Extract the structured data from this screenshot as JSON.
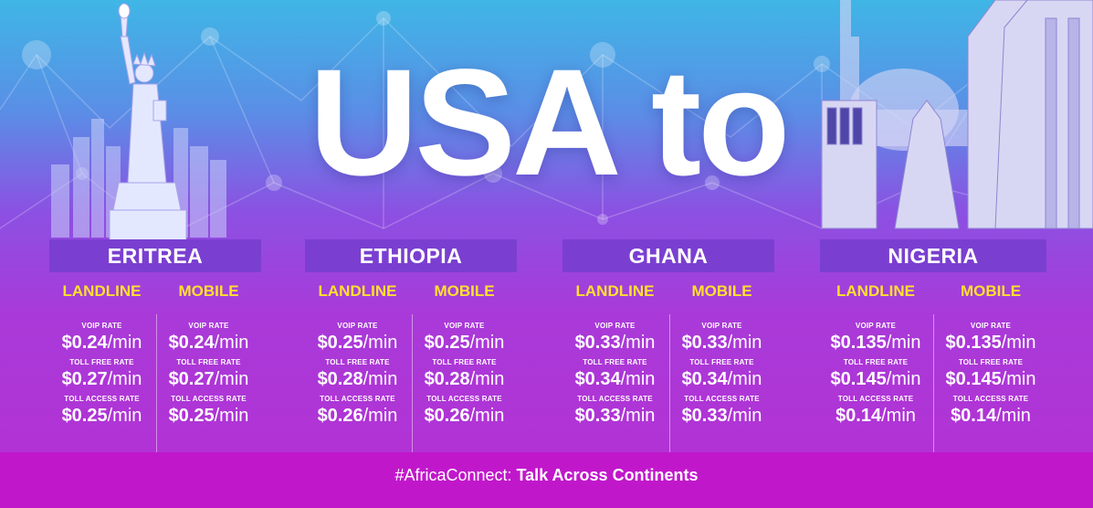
{
  "headline": "USA to",
  "footer": {
    "hashtag": "#AfricaConnect:",
    "tagline": " Talk Across Continents"
  },
  "labels": {
    "landline": "LANDLINE",
    "mobile": "MOBILE",
    "voip": "VOIP RATE",
    "toll_free": "TOLL FREE RATE",
    "toll_access": "TOLL ACCESS RATE",
    "unit": "/min"
  },
  "countries": [
    {
      "name": "ERITREA",
      "landline": {
        "voip": "$0.24",
        "toll_free": "$0.27",
        "toll_access": "$0.25"
      },
      "mobile": {
        "voip": "$0.24",
        "toll_free": "$0.27",
        "toll_access": "$0.25"
      }
    },
    {
      "name": "ETHIOPIA",
      "landline": {
        "voip": "$0.25",
        "toll_free": "$0.28",
        "toll_access": "$0.26"
      },
      "mobile": {
        "voip": "$0.25",
        "toll_free": "$0.28",
        "toll_access": "$0.26"
      }
    },
    {
      "name": "GHANA",
      "landline": {
        "voip": "$0.33",
        "toll_free": "$0.34",
        "toll_access": "$0.33"
      },
      "mobile": {
        "voip": "$0.33",
        "toll_free": "$0.34",
        "toll_access": "$0.33"
      }
    },
    {
      "name": "NIGERIA",
      "landline": {
        "voip": "$0.135",
        "toll_free": "$0.145",
        "toll_access": "$0.14"
      },
      "mobile": {
        "voip": "$0.135",
        "toll_free": "$0.145",
        "toll_access": "$0.14"
      }
    }
  ],
  "colors": {
    "country_bar": "#7a3fd1",
    "column_title": "#ffe02e",
    "footer": "#c117cb",
    "text": "#ffffff"
  },
  "icons": [
    "network-nodes-background",
    "statue-of-liberty-illustration",
    "nigeria-mosque-illustration"
  ]
}
